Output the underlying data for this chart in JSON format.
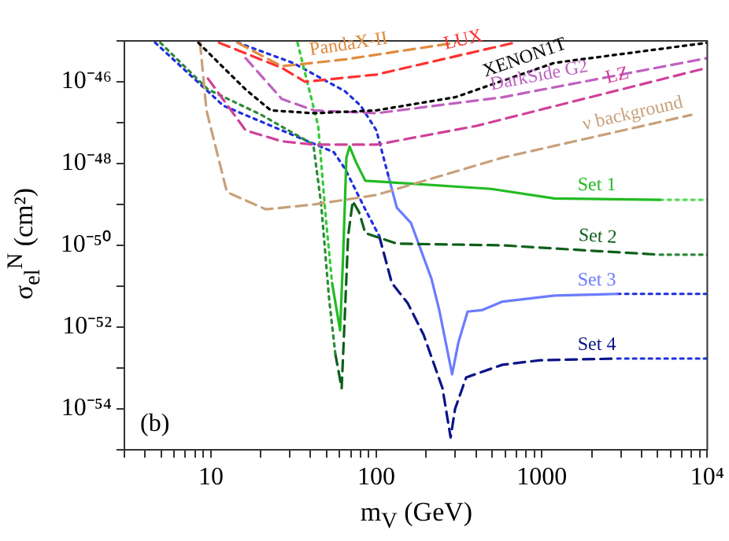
{
  "chart_data": {
    "type": "line",
    "xlabel": "m$_{V}$ (GeV)",
    "ylabel": "σ$_{el}$$^{N}$ (cm²)",
    "log": "xy",
    "grid": false,
    "legend": false,
    "marker": "none",
    "annotations": [
      "(b)",
      {
        "text": "PandaX-II",
        "x": 70,
        "y": 3.7e-46
      },
      {
        "text": "LUX",
        "x": 350,
        "y": 4.8e-46
      },
      {
        "text": "XENON1T",
        "x": 840,
        "y": 1.8e-46
      },
      {
        "text": "DarkSide G2",
        "x": 1000,
        "y": 6.4e-47
      },
      {
        "text": "LZ",
        "x": 3000,
        "y": 6.5e-47
      },
      {
        "text": "ν background",
        "x": 3700,
        "y": 7.6e-48
      },
      {
        "text": "Set 1",
        "x": 2150,
        "y": 1.35e-49
      },
      {
        "text": "Set 2",
        "x": 2150,
        "y": 7.3e-51
      },
      {
        "text": "Set 3",
        "x": 2150,
        "y": 6.3e-52
      },
      {
        "text": "Set 4",
        "x": 2150,
        "y": 1.65e-53
      }
    ],
    "xlim": [
      3,
      10000
    ],
    "ylim": [
      1e-55,
      1e-45
    ],
    "xticks": [
      {
        "value": 3,
        "label": null
      },
      {
        "value": 4,
        "label": null
      },
      {
        "value": 5,
        "label": null
      },
      {
        "value": 6,
        "label": null
      },
      {
        "value": 7,
        "label": null
      },
      {
        "value": 8,
        "label": null
      },
      {
        "value": 9,
        "label": null
      },
      10,
      {
        "value": 20,
        "label": null
      },
      {
        "value": 30,
        "label": null
      },
      {
        "value": 40,
        "label": null
      },
      {
        "value": 50,
        "label": null
      },
      {
        "value": 60,
        "label": null
      },
      {
        "value": 70,
        "label": null
      },
      {
        "value": 80,
        "label": null
      },
      {
        "value": 90,
        "label": null
      },
      100,
      {
        "value": 200,
        "label": null
      },
      {
        "value": 300,
        "label": null
      },
      {
        "value": 400,
        "label": null
      },
      {
        "value": 500,
        "label": null
      },
      {
        "value": 600,
        "label": null
      },
      {
        "value": 700,
        "label": null
      },
      {
        "value": 800,
        "label": null
      },
      {
        "value": 900,
        "label": null
      },
      1000,
      {
        "value": 2000,
        "label": null
      },
      {
        "value": 3000,
        "label": null
      },
      {
        "value": 4000,
        "label": null
      },
      {
        "value": 5000,
        "label": null
      },
      {
        "value": 6000,
        "label": null
      },
      {
        "value": 7000,
        "label": null
      },
      {
        "value": 8000,
        "label": null
      },
      {
        "value": 9000,
        "label": null
      },
      {
        "value": 10000,
        "label": "10⁴"
      }
    ],
    "yticks": [
      {
        "value": 1e-55,
        "label": null
      },
      {
        "value": 1e-54,
        "label": "10⁻⁵⁴"
      },
      {
        "value": 1e-53,
        "label": null
      },
      {
        "value": 1e-52,
        "label": "10⁻⁵²"
      },
      {
        "value": 1e-51,
        "label": null
      },
      {
        "value": 1e-50,
        "label": "10⁻⁵⁰"
      },
      {
        "value": 1e-49,
        "label": null
      },
      {
        "value": 1e-48,
        "label": "10⁻⁴⁸"
      },
      {
        "value": 1e-47,
        "label": null
      },
      {
        "value": 1e-46,
        "label": "10⁻⁴⁶"
      },
      {
        "value": 1e-45,
        "label": null
      }
    ],
    "series": [
      {
        "color": "#e08a3c",
        "line_style": "dashed",
        "x": [
          14.5,
          26.8,
          64,
          300
        ],
        "values": [
          9e-46,
          2.4e-46,
          3.5e-46,
          9e-46
        ]
      },
      {
        "color": "#ff3030",
        "line_style": "dashed",
        "x": [
          11.2,
          26.8,
          37,
          100,
          680
        ],
        "values": [
          9e-46,
          2.2e-46,
          1e-46,
          1.5e-46,
          9e-46
        ]
      },
      {
        "color": "#000000",
        "line_style": "dotted",
        "x": [
          8.4,
          16.2,
          23,
          42,
          100,
          300,
          1190,
          10000
        ],
        "values": [
          9e-46,
          6.5e-47,
          2e-47,
          1.7e-47,
          2e-47,
          4.2e-47,
          2.9e-46,
          9e-46
        ]
      },
      {
        "color": "#c060c0",
        "line_style": "dashed",
        "x": [
          16.2,
          26.8,
          42,
          100,
          580,
          10000
        ],
        "values": [
          3.8e-46,
          3.8e-47,
          2e-47,
          1.7e-47,
          4.2e-47,
          3.8e-46
        ]
      },
      {
        "color": "#d0409a",
        "line_style": "dashed",
        "x": [
          9.6,
          16.2,
          26.8,
          42,
          100,
          400,
          10000
        ],
        "values": [
          1.2e-46,
          6.5e-48,
          3.5e-48,
          2.9e-48,
          2.9e-48,
          8.3e-48,
          2.2e-46
        ]
      },
      {
        "color": "#c8a07a",
        "line_style": "dashed",
        "x": [
          8.6,
          9.4,
          12.5,
          21.5,
          42,
          100,
          580,
          8000
        ],
        "values": [
          9e-46,
          2e-47,
          2e-49,
          7.6e-50,
          1e-49,
          1.7e-49,
          1.4e-48,
          1.55e-47
        ]
      },
      {
        "color": "#33cc33",
        "line_style": "dotted",
        "x": [
          33.4,
          44.5,
          49.6,
          54
        ],
        "values": [
          9e-46,
          8.3e-48,
          4.2e-50,
          1.2e-51
        ]
      },
      {
        "color": "#22bb22",
        "line_style": "solid",
        "x": [
          54,
          60.4,
          63.1,
          65.9,
          68.9,
          75.2,
          85.7,
          117,
          495,
          1190,
          5170
        ],
        "values": [
          1.2e-51,
          8.3e-53,
          7e-51,
          1.4e-48,
          2.6e-48,
          1.1e-48,
          3.8e-49,
          3.5e-49,
          2.4e-49,
          1.4e-49,
          1.3e-49
        ]
      },
      {
        "color": "#55dd55",
        "line_style": "dotted",
        "x": [
          5170,
          10000
        ],
        "values": [
          1.3e-49,
          1.3e-49
        ]
      },
      {
        "color": "#2e8a3a",
        "line_style": "dotted",
        "x": [
          4.95,
          9.6,
          20.2,
          41.6,
          46.4,
          51.8,
          56.5
        ],
        "values": [
          9e-46,
          6.5e-47,
          1.55e-47,
          2.9e-48,
          1e-49,
          4.9e-52,
          2.2e-53
        ]
      },
      {
        "color": "#0d5f1a",
        "line_style": "dashed",
        "x": [
          56.5,
          61.7,
          64.5,
          67.5,
          72,
          78.6,
          85.7,
          133,
          578,
          2510,
          5170
        ],
        "values": [
          2.2e-53,
          3.2e-54,
          2e-52,
          1.7e-50,
          1.2e-49,
          6.5e-50,
          2e-50,
          1.1e-50,
          1e-50,
          7e-51,
          5.9e-51
        ]
      },
      {
        "color": "#2e8a3a",
        "line_style": "dotted",
        "x": [
          5170,
          10000
        ],
        "values": [
          5.9e-51,
          5.9e-51
        ]
      },
      {
        "color": "#1f2fe0",
        "line_style": "dotted",
        "x": [
          14.5,
          31.3,
          64.5,
          80.4,
          100,
          119
        ],
        "values": [
          9.1e-46,
          2.9e-46,
          5.9e-47,
          2.6e-47,
          6.5e-48,
          4.5e-49
        ]
      },
      {
        "color": "#6b7bff",
        "line_style": "solid",
        "x": [
          119,
          133,
          162,
          215,
          240,
          287,
          313,
          356,
          434,
          578,
          1190,
          2860
        ],
        "values": [
          4.5e-49,
          8.3e-50,
          3.5e-50,
          1.55e-51,
          2.6e-52,
          7e-54,
          4.2e-53,
          2.4e-52,
          2.6e-52,
          4.2e-52,
          5.9e-52,
          6.5e-52
        ]
      },
      {
        "color": "#1f2fe0",
        "line_style": "dotted",
        "x": [
          2860,
          10000
        ],
        "values": [
          6.5e-52,
          6.5e-52
        ]
      },
      {
        "color": "#1f2fe0",
        "line_style": "dotted",
        "x": [
          4.6,
          11.9,
          26.8,
          55.3,
          64.5,
          85.7,
          104
        ],
        "values": [
          9.1e-46,
          2.6e-47,
          6.5e-48,
          1.9e-48,
          7.6e-49,
          7.6e-50,
          1.7e-50
        ]
      },
      {
        "color": "#0a1488",
        "line_style": "dashed",
        "x": [
          104,
          124,
          155,
          193,
          251,
          281,
          299,
          349,
          578,
          977,
          2860
        ],
        "values": [
          1.7e-50,
          1.2e-51,
          3.8e-52,
          6.5e-53,
          3.2e-54,
          2e-55,
          1e-54,
          5.9e-54,
          1.2e-53,
          1.55e-53,
          1.7e-53
        ]
      },
      {
        "color": "#1f2fe0",
        "line_style": "dotted",
        "x": [
          2860,
          10000
        ],
        "values": [
          1.7e-53,
          1.7e-53
        ]
      }
    ]
  }
}
